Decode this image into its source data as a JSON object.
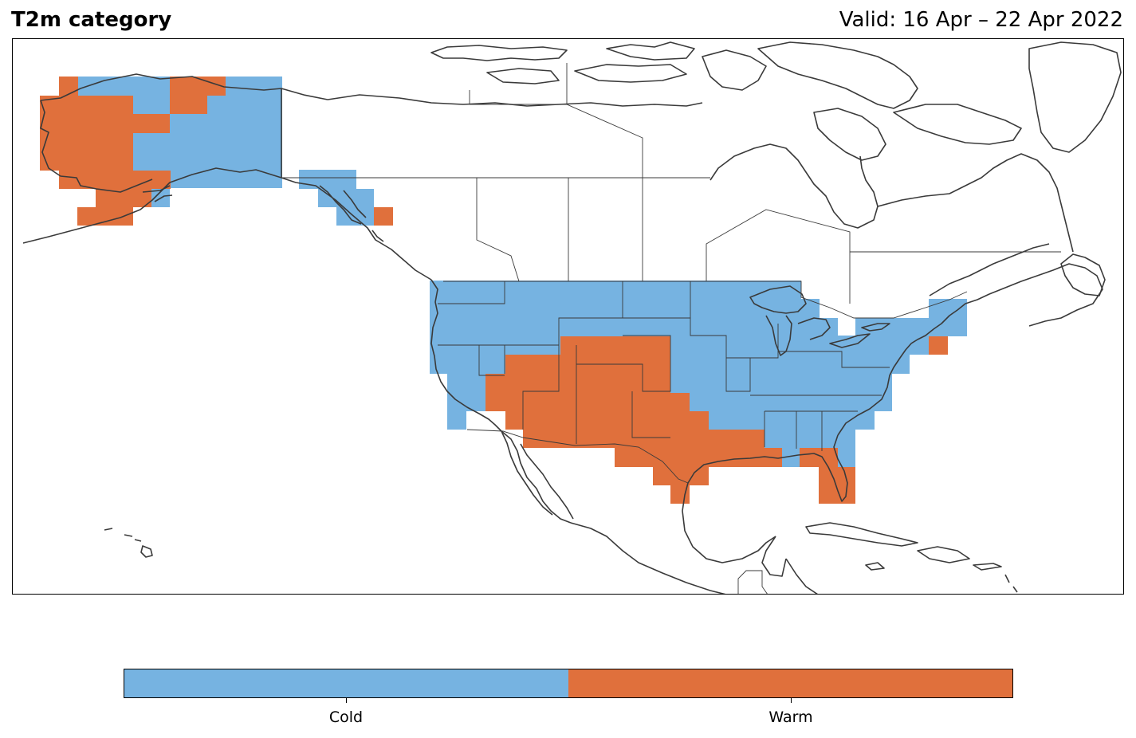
{
  "title": "T2m category",
  "valid": "Valid: 16 Apr – 22 Apr 2022",
  "colors": {
    "cold": "#76b3e1",
    "warm": "#e0703c",
    "coast": "#3a3a3a"
  },
  "legend": {
    "categories": [
      {
        "label": "Cold",
        "color": "#76b3e1"
      },
      {
        "label": "Warm",
        "color": "#e0703c"
      }
    ]
  },
  "regions": [
    {
      "name": "Alaska",
      "category": "Mixed"
    },
    {
      "name": "Southeast Alaska panhandle",
      "category": "Cold"
    },
    {
      "name": "Northern & central CONUS",
      "category": "Cold"
    },
    {
      "name": "Northeast US",
      "category": "Cold"
    },
    {
      "name": "Southwest & Southern Plains",
      "category": "Warm"
    },
    {
      "name": "Gulf Coast & Florida",
      "category": "Warm"
    }
  ]
}
